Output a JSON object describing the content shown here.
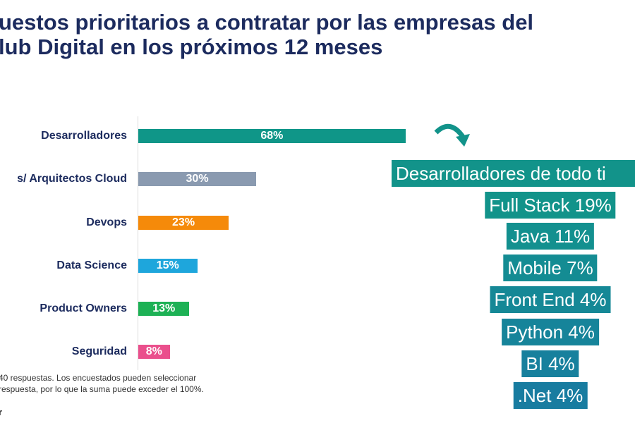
{
  "title_lines": [
    "uestos prioritarios a contratar por las empresas del",
    "lub Digital en los próximos 12 meses"
  ],
  "chart_data": {
    "type": "bar",
    "orientation": "horizontal",
    "categories": [
      "Desarrolladores",
      "s/ Arquitectos Cloud",
      "Devops",
      "Data Science",
      "Product Owners",
      "Seguridad"
    ],
    "values": [
      68,
      30,
      23,
      15,
      13,
      8
    ],
    "data_labels": [
      "68%",
      "30%",
      "23%",
      "15%",
      "13%",
      "8%"
    ],
    "colors": [
      "#0f9688",
      "#8a9ab0",
      "#f58a0a",
      "#1ea6dc",
      "#1db155",
      "#ea4f8c"
    ],
    "xlim": [
      0,
      100
    ],
    "grid": false
  },
  "footnote": [
    "40 respuestas. Los encuestados pueden seleccionar",
    " respuesta, por lo que la suma puede exceder el 100%."
  ],
  "footnote_extra": "r",
  "breakdown": {
    "header": "Desarrolladores de todo ti",
    "items": [
      "Full Stack 19%",
      "Java 11%",
      "Mobile 7%",
      "Front End 4%",
      "Python 4%",
      "BI 4%",
      ".Net 4%"
    ],
    "arrow_icon": "curved-arrow-down-right"
  }
}
